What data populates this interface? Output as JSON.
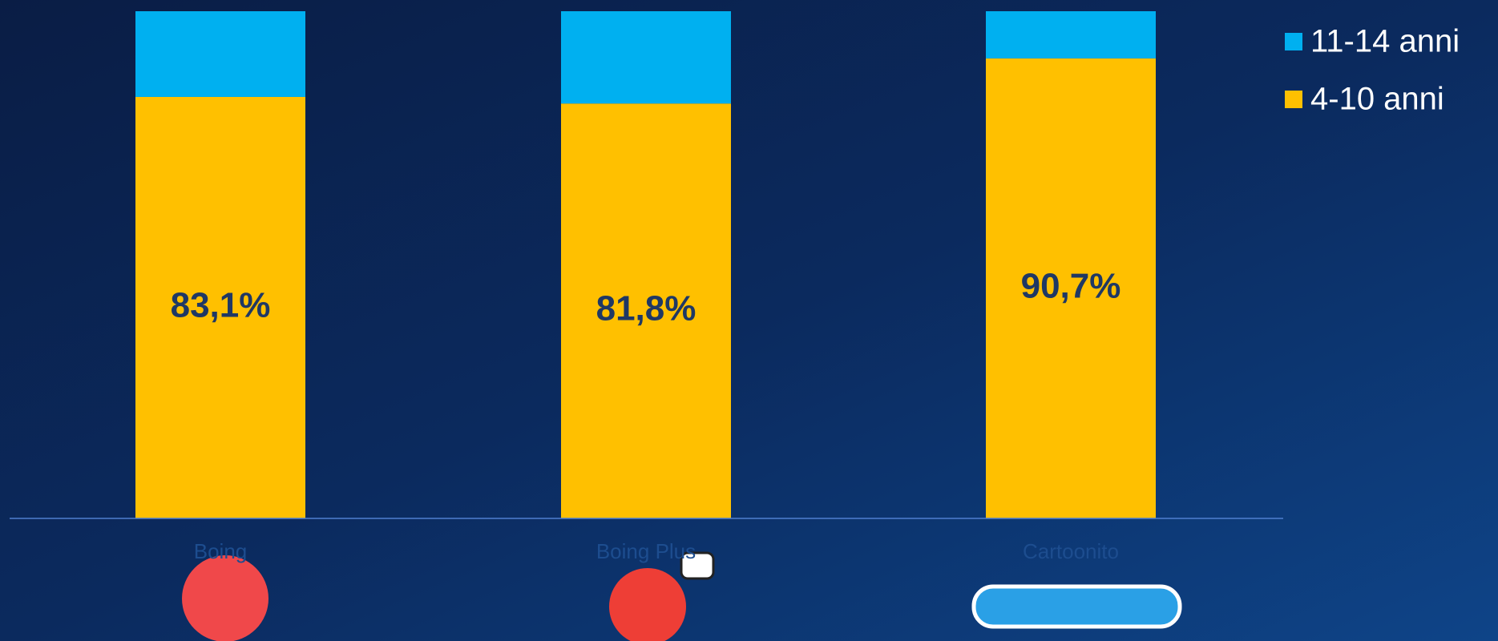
{
  "chart_data": {
    "type": "stacked_bar",
    "categories": [
      "Boing",
      "Boing Plus",
      "Cartoonito"
    ],
    "series": [
      {
        "name": "4-10 anni",
        "color": "#ffc000",
        "values": [
          83.1,
          81.8,
          90.7
        ],
        "value_labels": [
          "83,1%",
          "81,8%",
          "90,7%"
        ]
      },
      {
        "name": "11-14 anni",
        "color": "#00b0f0",
        "values": [
          16.9,
          18.2,
          9.3
        ]
      }
    ],
    "ylim": [
      0,
      100
    ],
    "legend": "top-right"
  }
}
